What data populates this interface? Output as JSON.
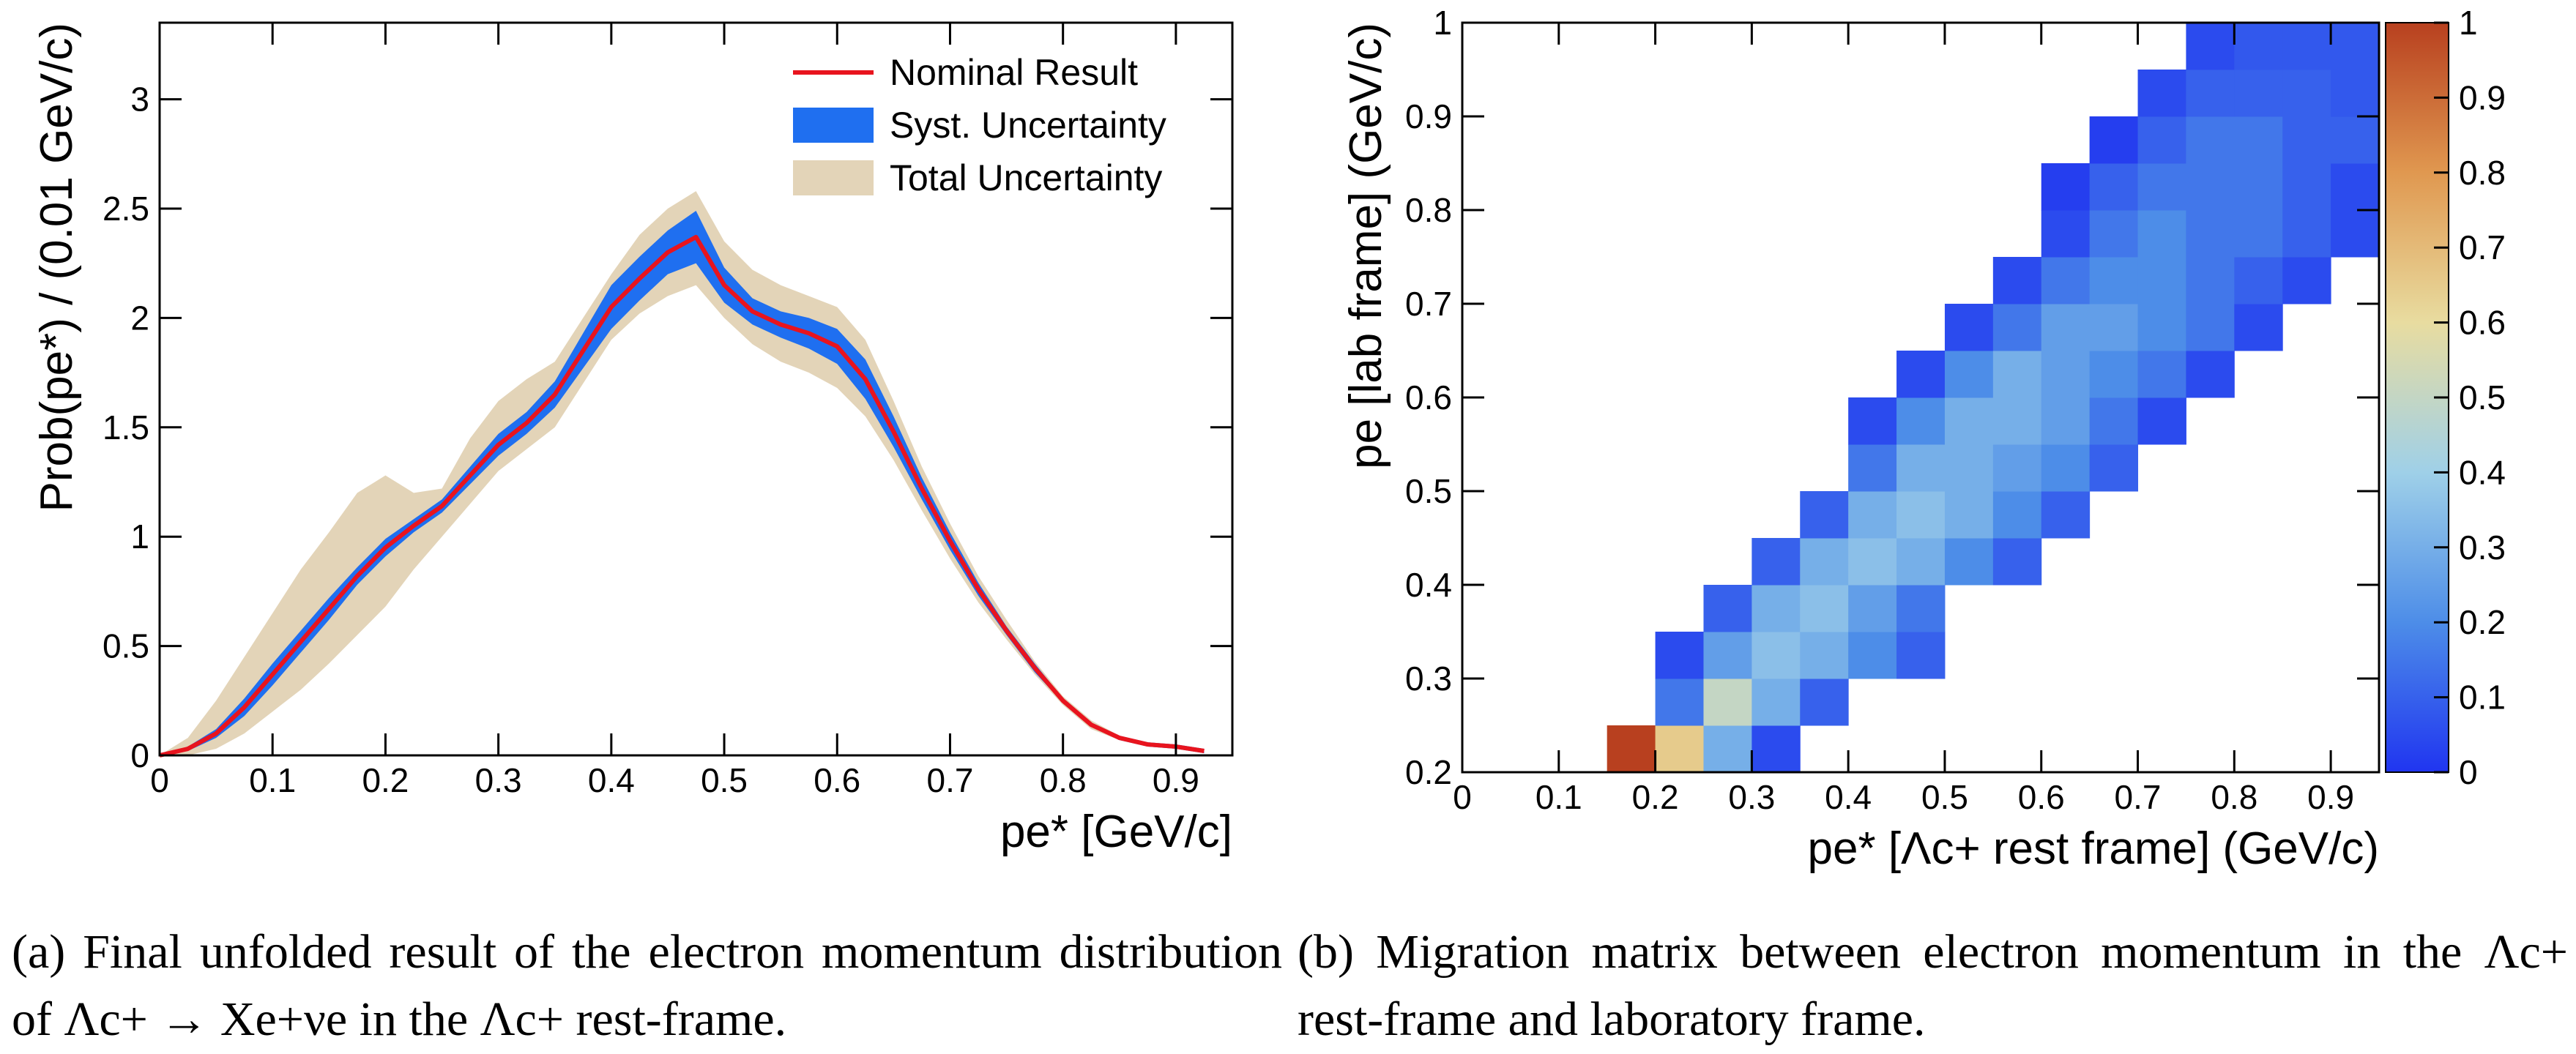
{
  "chart_data": [
    {
      "type": "line",
      "caption": "(a) Final unfolded result of the electron momentum distribution of Λc+ → Xe+νe in the Λc+ rest-frame.",
      "xlabel": "pe* [GeV/c]",
      "ylabel": "Prob(pe*) / (0.01 GeV/c)",
      "x": [
        0,
        0.025,
        0.05,
        0.075,
        0.1,
        0.125,
        0.15,
        0.175,
        0.2,
        0.225,
        0.25,
        0.275,
        0.3,
        0.325,
        0.35,
        0.375,
        0.4,
        0.425,
        0.45,
        0.475,
        0.5,
        0.525,
        0.55,
        0.575,
        0.6,
        0.625,
        0.65,
        0.675,
        0.7,
        0.725,
        0.75,
        0.775,
        0.8,
        0.825,
        0.85,
        0.875,
        0.9,
        0.925
      ],
      "xlim": [
        0,
        0.95
      ],
      "ylim": [
        0,
        3.35
      ],
      "xticks": [
        0,
        0.1,
        0.2,
        0.3,
        0.4,
        0.5,
        0.6,
        0.7,
        0.8,
        0.9
      ],
      "yticks": [
        0,
        0.5,
        1,
        1.5,
        2,
        2.5,
        3
      ],
      "legend": "top-right",
      "series": [
        {
          "name": "Nominal Result",
          "color": "#e8141e",
          "values": [
            0,
            0.03,
            0.1,
            0.22,
            0.37,
            0.52,
            0.67,
            0.82,
            0.95,
            1.05,
            1.14,
            1.28,
            1.42,
            1.52,
            1.65,
            1.85,
            2.05,
            2.18,
            2.3,
            2.37,
            2.15,
            2.03,
            1.97,
            1.93,
            1.87,
            1.72,
            1.48,
            1.22,
            0.98,
            0.76,
            0.57,
            0.4,
            0.25,
            0.14,
            0.08,
            0.05,
            0.04,
            0.02
          ]
        },
        {
          "name": "Syst. Uncertainty",
          "color": "#1f6ff0",
          "low": [
            0,
            0.02,
            0.08,
            0.18,
            0.32,
            0.47,
            0.62,
            0.78,
            0.91,
            1.02,
            1.11,
            1.24,
            1.37,
            1.47,
            1.59,
            1.77,
            1.95,
            2.08,
            2.2,
            2.25,
            2.07,
            1.97,
            1.91,
            1.86,
            1.79,
            1.63,
            1.41,
            1.17,
            0.94,
            0.73,
            0.55,
            0.38,
            0.24,
            0.13,
            0.07,
            0.04,
            0.03,
            0.01
          ],
          "high": [
            0,
            0.04,
            0.12,
            0.26,
            0.42,
            0.57,
            0.72,
            0.86,
            0.99,
            1.08,
            1.17,
            1.32,
            1.47,
            1.57,
            1.71,
            1.93,
            2.15,
            2.28,
            2.4,
            2.49,
            2.23,
            2.09,
            2.03,
            2.0,
            1.95,
            1.81,
            1.55,
            1.27,
            1.02,
            0.79,
            0.59,
            0.42,
            0.26,
            0.15,
            0.09,
            0.06,
            0.05,
            0.03
          ]
        },
        {
          "name": "Total Uncertainty",
          "color": "#e3d4b8",
          "low": [
            0,
            0,
            0.03,
            0.1,
            0.2,
            0.3,
            0.42,
            0.55,
            0.68,
            0.85,
            1.0,
            1.15,
            1.3,
            1.4,
            1.5,
            1.7,
            1.9,
            2.02,
            2.1,
            2.15,
            2.0,
            1.88,
            1.8,
            1.75,
            1.68,
            1.55,
            1.35,
            1.12,
            0.9,
            0.7,
            0.53,
            0.37,
            0.23,
            0.12,
            0.07,
            0.04,
            0.03,
            0.01
          ],
          "high": [
            0,
            0.08,
            0.25,
            0.45,
            0.65,
            0.85,
            1.02,
            1.2,
            1.28,
            1.2,
            1.22,
            1.45,
            1.62,
            1.72,
            1.8,
            2.0,
            2.2,
            2.38,
            2.5,
            2.58,
            2.35,
            2.22,
            2.15,
            2.1,
            2.05,
            1.9,
            1.62,
            1.32,
            1.06,
            0.82,
            0.62,
            0.43,
            0.27,
            0.16,
            0.09,
            0.06,
            0.05,
            0.03
          ]
        }
      ]
    },
    {
      "type": "heatmap",
      "caption": "(b) Migration matrix between electron momentum in the Λc+ rest-frame and laboratory frame.",
      "xlabel": "pe* [Λc+ rest frame] (GeV/c)",
      "ylabel": "pe [lab frame] (GeV/c)",
      "xbins": [
        0,
        0.05,
        0.1,
        0.15,
        0.2,
        0.25,
        0.3,
        0.35,
        0.4,
        0.45,
        0.5,
        0.55,
        0.6,
        0.65,
        0.7,
        0.75,
        0.8,
        0.85,
        0.9,
        0.95
      ],
      "ybins": [
        0.2,
        0.25,
        0.3,
        0.35,
        0.4,
        0.45,
        0.5,
        0.55,
        0.6,
        0.65,
        0.7,
        0.75,
        0.8,
        0.85,
        0.9,
        0.95,
        1
      ],
      "values": [
        [
          null,
          null,
          null,
          1,
          0.65,
          0.3,
          0.05,
          null,
          null,
          null,
          null,
          null,
          null,
          null,
          null,
          null,
          null,
          null,
          null
        ],
        [
          null,
          null,
          null,
          null,
          0.15,
          0.5,
          0.3,
          0.1,
          null,
          null,
          null,
          null,
          null,
          null,
          null,
          null,
          null,
          null,
          null
        ],
        [
          null,
          null,
          null,
          null,
          0.05,
          0.25,
          0.35,
          0.3,
          0.2,
          0.1,
          null,
          null,
          null,
          null,
          null,
          null,
          null,
          null,
          null
        ],
        [
          null,
          null,
          null,
          null,
          null,
          0.1,
          0.3,
          0.35,
          0.25,
          0.15,
          null,
          null,
          null,
          null,
          null,
          null,
          null,
          null,
          null
        ],
        [
          null,
          null,
          null,
          null,
          null,
          null,
          0.1,
          0.3,
          0.35,
          0.3,
          0.2,
          0.1,
          null,
          null,
          null,
          null,
          null,
          null,
          null
        ],
        [
          null,
          null,
          null,
          null,
          null,
          null,
          null,
          0.1,
          0.3,
          0.35,
          0.3,
          0.2,
          0.1,
          null,
          null,
          null,
          null,
          null,
          null
        ],
        [
          null,
          null,
          null,
          null,
          null,
          null,
          null,
          null,
          0.15,
          0.3,
          0.3,
          0.25,
          0.2,
          0.1,
          null,
          null,
          null,
          null,
          null
        ],
        [
          null,
          null,
          null,
          null,
          null,
          null,
          null,
          null,
          0.05,
          0.2,
          0.3,
          0.3,
          0.25,
          0.15,
          0.05,
          null,
          null,
          null,
          null
        ],
        [
          null,
          null,
          null,
          null,
          null,
          null,
          null,
          null,
          null,
          0.05,
          0.2,
          0.3,
          0.25,
          0.2,
          0.15,
          0.05,
          null,
          null,
          null
        ],
        [
          null,
          null,
          null,
          null,
          null,
          null,
          null,
          null,
          null,
          null,
          0.05,
          0.15,
          0.25,
          0.25,
          0.2,
          0.15,
          0.05,
          null,
          null
        ],
        [
          null,
          null,
          null,
          null,
          null,
          null,
          null,
          null,
          null,
          null,
          null,
          0.05,
          0.15,
          0.2,
          0.2,
          0.15,
          0.1,
          0.05,
          null
        ],
        [
          null,
          null,
          null,
          null,
          null,
          null,
          null,
          null,
          null,
          null,
          null,
          null,
          0.05,
          0.15,
          0.2,
          0.15,
          0.15,
          0.1,
          0.05
        ],
        [
          null,
          null,
          null,
          null,
          null,
          null,
          null,
          null,
          null,
          null,
          null,
          null,
          0.02,
          0.1,
          0.15,
          0.15,
          0.15,
          0.1,
          0.05
        ],
        [
          null,
          null,
          null,
          null,
          null,
          null,
          null,
          null,
          null,
          null,
          null,
          null,
          null,
          0.02,
          0.1,
          0.15,
          0.15,
          0.1,
          0.1
        ],
        [
          null,
          null,
          null,
          null,
          null,
          null,
          null,
          null,
          null,
          null,
          null,
          null,
          null,
          null,
          0.05,
          0.1,
          0.1,
          0.1,
          0.08
        ],
        [
          null,
          null,
          null,
          null,
          null,
          null,
          null,
          null,
          null,
          null,
          null,
          null,
          null,
          null,
          null,
          0.05,
          0.08,
          0.08,
          0.08
        ]
      ],
      "xlim": [
        0,
        0.95
      ],
      "ylim": [
        0.2,
        1
      ],
      "xticks": [
        0,
        0.1,
        0.2,
        0.3,
        0.4,
        0.5,
        0.6,
        0.7,
        0.8,
        0.9
      ],
      "yticks": [
        0.2,
        0.3,
        0.4,
        0.5,
        0.6,
        0.7,
        0.8,
        0.9,
        1
      ],
      "zlim": [
        0,
        1
      ],
      "zticks": [
        0,
        0.1,
        0.2,
        0.3,
        0.4,
        0.5,
        0.6,
        0.7,
        0.8,
        0.9,
        1
      ],
      "colormap": [
        "#2035f0",
        "#4d8de8",
        "#9fd0e8",
        "#e8dca0",
        "#e09850",
        "#b8401f"
      ]
    }
  ]
}
